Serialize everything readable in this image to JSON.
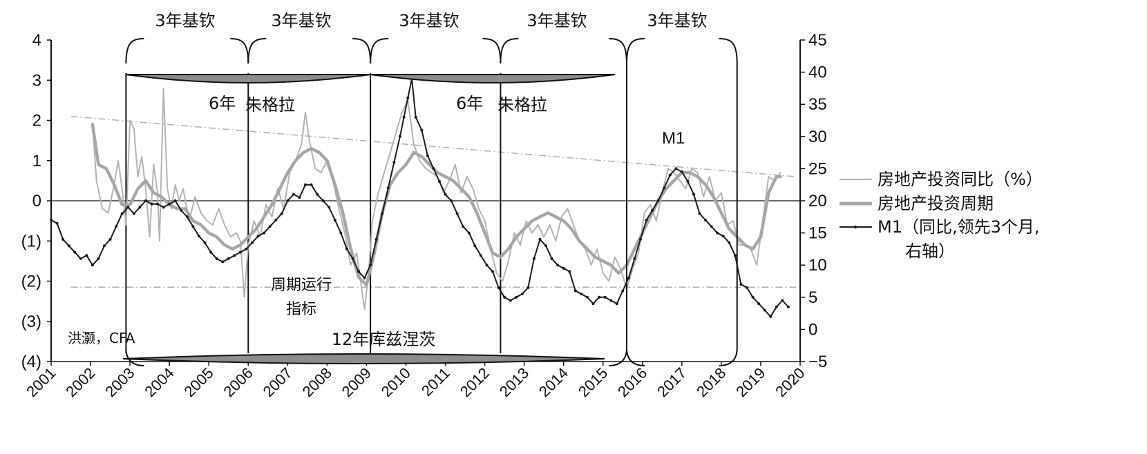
{
  "chart_data": {
    "type": "line",
    "title": "",
    "y_left": {
      "ticks": [
        "4",
        "3",
        "2",
        "1",
        "0",
        "(1)",
        "(2)",
        "(3)",
        "(4)"
      ],
      "ylim": [
        -4,
        4
      ]
    },
    "y_right": {
      "ticks": [
        "45",
        "40",
        "35",
        "30",
        "25",
        "20",
        "15",
        "10",
        "5",
        "0",
        "−5"
      ],
      "ylim": [
        -5,
        45
      ]
    },
    "x_ticks": [
      "2001",
      "2002",
      "2003",
      "2004",
      "2005",
      "2006",
      "2007",
      "2008",
      "2009",
      "2010",
      "2011",
      "2012",
      "2013",
      "2014",
      "2015",
      "2016",
      "2017",
      "2018",
      "2019",
      "2020"
    ],
    "xlim": [
      2001,
      2020
    ],
    "series": [
      {
        "name": "房地产投资同比（%）",
        "axis": "left",
        "color": "#b3b3b3",
        "x": [
          2002.05,
          2002.15,
          2002.3,
          2002.45,
          2002.6,
          2002.7,
          2002.8,
          2002.9,
          2003.0,
          2003.1,
          2003.2,
          2003.3,
          2003.4,
          2003.5,
          2003.6,
          2003.7,
          2003.75,
          2003.85,
          2003.95,
          2004.05,
          2004.15,
          2004.25,
          2004.35,
          2004.5,
          2004.65,
          2004.8,
          2004.95,
          2005.1,
          2005.25,
          2005.4,
          2005.55,
          2005.7,
          2005.8,
          2005.9,
          2006.0,
          2006.15,
          2006.3,
          2006.45,
          2006.6,
          2006.75,
          2006.9,
          2007.05,
          2007.2,
          2007.35,
          2007.45,
          2007.55,
          2007.7,
          2007.85,
          2008.0,
          2008.15,
          2008.3,
          2008.45,
          2008.6,
          2008.75,
          2008.85,
          2008.95,
          2009.05,
          2009.15,
          2009.3,
          2009.45,
          2009.6,
          2009.75,
          2009.9,
          2010.05,
          2010.2,
          2010.35,
          2010.5,
          2010.65,
          2010.8,
          2010.95,
          2011.1,
          2011.25,
          2011.4,
          2011.55,
          2011.7,
          2011.85,
          2012.0,
          2012.15,
          2012.3,
          2012.45,
          2012.6,
          2012.75,
          2012.9,
          2013.05,
          2013.2,
          2013.35,
          2013.5,
          2013.65,
          2013.8,
          2013.95,
          2014.1,
          2014.25,
          2014.4,
          2014.55,
          2014.7,
          2014.85,
          2015.0,
          2015.15,
          2015.3,
          2015.45,
          2015.6,
          2015.75,
          2015.9,
          2016.05,
          2016.2,
          2016.35,
          2016.5,
          2016.65,
          2016.8,
          2016.95,
          2017.1,
          2017.25,
          2017.4,
          2017.55,
          2017.7,
          2017.85,
          2018.0,
          2018.15,
          2018.3,
          2018.45,
          2018.6,
          2018.75,
          2018.9,
          2019.05,
          2019.2,
          2019.35,
          2019.5
        ],
        "y": [
          1.9,
          0.5,
          -0.2,
          -0.3,
          0.4,
          1.0,
          0.3,
          -0.6,
          2.0,
          1.8,
          0.6,
          1.1,
          0.3,
          -0.9,
          0.9,
          0.2,
          -1.0,
          2.8,
          0.3,
          -0.2,
          0.4,
          0.0,
          0.3,
          -0.5,
          0.1,
          -0.3,
          -0.5,
          -0.6,
          -0.2,
          -0.6,
          -0.9,
          -0.8,
          -1.0,
          -2.4,
          -1.1,
          -0.5,
          -0.9,
          -0.1,
          -0.4,
          0.3,
          -0.2,
          0.7,
          1.0,
          1.4,
          2.2,
          1.5,
          0.8,
          0.7,
          1.0,
          0.5,
          -0.2,
          -0.8,
          -1.6,
          -1.3,
          -2.0,
          -2.7,
          -1.8,
          -0.5,
          0.2,
          0.7,
          1.2,
          1.7,
          2.2,
          2.5,
          1.4,
          1.0,
          0.8,
          0.7,
          0.6,
          0.2,
          0.5,
          0.9,
          0.2,
          0.6,
          0.3,
          -0.2,
          -0.5,
          -1.2,
          -1.8,
          -2.0,
          -1.5,
          -0.8,
          -1.1,
          -0.5,
          -0.8,
          -0.6,
          -0.9,
          -0.6,
          -1.0,
          -0.4,
          -0.2,
          -0.6,
          -1.0,
          -1.2,
          -1.6,
          -1.2,
          -1.8,
          -2.0,
          -1.4,
          -1.7,
          -2.2,
          -1.7,
          -1.3,
          -0.3,
          -0.1,
          -0.5,
          0.2,
          0.8,
          0.7,
          0.5,
          0.3,
          0.8,
          0.7,
          0.1,
          0.6,
          0.0,
          0.2,
          -0.6,
          -0.5,
          -1.1,
          -1.1,
          -1.2,
          -1.6,
          -0.5,
          0.6,
          0.5,
          0.7
        ]
      },
      {
        "name": "房地产投资周期",
        "axis": "left",
        "color": "#a6a6a6",
        "x": [
          2002.05,
          2002.2,
          2002.4,
          2002.6,
          2002.8,
          2003.0,
          2003.2,
          2003.4,
          2003.6,
          2003.8,
          2004.0,
          2004.2,
          2004.4,
          2004.6,
          2004.8,
          2005.0,
          2005.2,
          2005.4,
          2005.6,
          2005.8,
          2006.0,
          2006.2,
          2006.4,
          2006.6,
          2006.8,
          2007.0,
          2007.2,
          2007.4,
          2007.6,
          2007.8,
          2008.0,
          2008.2,
          2008.4,
          2008.6,
          2008.8,
          2009.0,
          2009.2,
          2009.4,
          2009.6,
          2009.8,
          2010.0,
          2010.2,
          2010.4,
          2010.6,
          2010.8,
          2011.0,
          2011.2,
          2011.4,
          2011.6,
          2011.8,
          2012.0,
          2012.2,
          2012.4,
          2012.6,
          2012.8,
          2013.0,
          2013.2,
          2013.4,
          2013.6,
          2013.8,
          2014.0,
          2014.2,
          2014.4,
          2014.6,
          2014.8,
          2015.0,
          2015.2,
          2015.4,
          2015.6,
          2015.8,
          2016.0,
          2016.2,
          2016.4,
          2016.6,
          2016.8,
          2017.0,
          2017.2,
          2017.4,
          2017.6,
          2017.8,
          2018.0,
          2018.2,
          2018.4,
          2018.6,
          2018.8,
          2019.0,
          2019.2,
          2019.4,
          2019.5
        ],
        "y": [
          1.9,
          0.9,
          0.8,
          0.4,
          -0.1,
          -0.1,
          0.3,
          0.5,
          0.2,
          0.1,
          -0.1,
          -0.2,
          -0.2,
          -0.5,
          -0.6,
          -0.8,
          -0.9,
          -1.1,
          -1.2,
          -1.1,
          -0.9,
          -0.7,
          -0.4,
          -0.1,
          0.3,
          0.7,
          1.0,
          1.2,
          1.3,
          1.2,
          1.0,
          0.4,
          -0.3,
          -1.2,
          -1.9,
          -2.1,
          -1.3,
          -0.3,
          0.4,
          0.7,
          0.9,
          1.2,
          1.1,
          0.9,
          0.7,
          0.6,
          0.5,
          0.3,
          0.1,
          -0.3,
          -0.8,
          -1.3,
          -1.4,
          -1.2,
          -0.9,
          -0.7,
          -0.5,
          -0.4,
          -0.3,
          -0.4,
          -0.5,
          -0.7,
          -1.0,
          -1.2,
          -1.4,
          -1.5,
          -1.6,
          -1.8,
          -1.6,
          -1.2,
          -0.8,
          -0.4,
          0.0,
          0.3,
          0.5,
          0.7,
          0.7,
          0.6,
          0.4,
          0.1,
          -0.3,
          -0.7,
          -0.9,
          -1.1,
          -1.2,
          -0.9,
          0.2,
          0.6,
          0.6
        ]
      },
      {
        "name": "M1（同比,领先3个月,右轴）",
        "axis": "right",
        "color": "#1a1a1a",
        "x": [
          2001.0,
          2001.15,
          2001.3,
          2001.45,
          2001.6,
          2001.75,
          2001.9,
          2002.05,
          2002.2,
          2002.35,
          2002.5,
          2002.65,
          2002.8,
          2002.95,
          2003.1,
          2003.25,
          2003.4,
          2003.55,
          2003.7,
          2003.85,
          2004.0,
          2004.15,
          2004.3,
          2004.45,
          2004.6,
          2004.75,
          2004.9,
          2005.05,
          2005.2,
          2005.35,
          2005.5,
          2005.65,
          2005.8,
          2005.95,
          2006.1,
          2006.25,
          2006.4,
          2006.55,
          2006.7,
          2006.85,
          2007.0,
          2007.15,
          2007.3,
          2007.45,
          2007.6,
          2007.75,
          2007.9,
          2008.05,
          2008.2,
          2008.35,
          2008.5,
          2008.65,
          2008.8,
          2008.95,
          2009.1,
          2009.25,
          2009.4,
          2009.55,
          2009.7,
          2009.85,
          2009.95,
          2010.05,
          2010.15,
          2010.25,
          2010.4,
          2010.55,
          2010.7,
          2010.85,
          2011.0,
          2011.15,
          2011.3,
          2011.45,
          2011.6,
          2011.75,
          2011.9,
          2012.05,
          2012.2,
          2012.35,
          2012.5,
          2012.65,
          2012.8,
          2012.95,
          2013.1,
          2013.25,
          2013.4,
          2013.55,
          2013.7,
          2013.85,
          2014.0,
          2014.15,
          2014.3,
          2014.45,
          2014.6,
          2014.75,
          2014.9,
          2015.05,
          2015.2,
          2015.35,
          2015.5,
          2015.65,
          2015.8,
          2015.95,
          2016.1,
          2016.25,
          2016.4,
          2016.55,
          2016.7,
          2016.85,
          2017.0,
          2017.15,
          2017.3,
          2017.45,
          2017.6,
          2017.75,
          2017.9,
          2018.05,
          2018.2,
          2018.35,
          2018.5,
          2018.65,
          2018.8,
          2018.95,
          2019.1,
          2019.25,
          2019.4,
          2019.55,
          2019.7
        ],
        "y": [
          17.0,
          16.5,
          14.0,
          13.0,
          12.0,
          11.0,
          11.5,
          10.0,
          11.0,
          13.0,
          14.0,
          16.0,
          18.0,
          19.0,
          18.0,
          19.0,
          20.0,
          19.5,
          19.5,
          19.0,
          19.5,
          20.0,
          18.5,
          17.5,
          16.0,
          14.5,
          13.5,
          12.0,
          11.0,
          10.5,
          11.0,
          11.5,
          12.0,
          12.5,
          13.5,
          14.5,
          15.0,
          16.0,
          17.0,
          18.0,
          20.0,
          21.0,
          20.5,
          22.5,
          22.5,
          21.0,
          20.0,
          19.0,
          17.0,
          15.0,
          12.5,
          11.0,
          9.0,
          8.0,
          10.0,
          14.0,
          18.0,
          22.0,
          26.0,
          30.0,
          33.0,
          36.0,
          39.0,
          33.0,
          31.0,
          27.0,
          25.0,
          23.0,
          21.0,
          20.0,
          18.0,
          16.0,
          15.0,
          13.0,
          11.5,
          10.0,
          9.0,
          6.5,
          5.0,
          4.5,
          5.0,
          5.5,
          6.5,
          11.0,
          14.0,
          13.0,
          11.0,
          10.0,
          9.5,
          9.0,
          6.0,
          5.5,
          5.0,
          4.0,
          5.0,
          5.0,
          4.5,
          4.0,
          6.0,
          8.0,
          11.0,
          14.0,
          17.0,
          18.5,
          20.0,
          22.0,
          24.0,
          25.0,
          24.5,
          23.0,
          21.0,
          18.0,
          17.0,
          16.0,
          15.0,
          14.5,
          13.5,
          11.5,
          7.0,
          6.5,
          5.0,
          4.0,
          3.0,
          2.0,
          3.5,
          4.5,
          3.5
        ]
      }
    ],
    "trend_lines": [
      {
        "axis": "left",
        "x": [
          2001.5,
          2019.9
        ],
        "y": [
          2.1,
          0.6
        ]
      },
      {
        "axis": "left",
        "x": [
          2001.5,
          2019.9
        ],
        "y": [
          -2.15,
          -2.15
        ]
      }
    ],
    "cycle_labels": {
      "kitchin": "3年基钦",
      "juglar_1": "6年",
      "juglar_name": "朱格拉",
      "juglar_2": "6年",
      "kuznets": "12年库兹涅茨",
      "indicator_line1": "周期运行",
      "indicator_line2": "指标",
      "author": "洪灏，CFA",
      "m1_tag": "M1"
    },
    "cycle_dividers": [
      2002.9,
      2006.0,
      2009.1,
      2012.4,
      2015.6,
      2018.4
    ],
    "legend": {
      "placement": "right",
      "items": [
        {
          "label": "房地产投资同比（%）"
        },
        {
          "label": "房地产投资周期"
        },
        {
          "label_line1": "M1（同比,领先3个月,",
          "label_line2": "右轴）"
        }
      ]
    },
    "colors": {
      "investment_yoy": "#b3b3b3",
      "investment_cycle": "#a6a6a6",
      "m1": "#1a1a1a",
      "trend": "#b0b0b0",
      "ellipse_fill": "#8c8c8c"
    }
  }
}
